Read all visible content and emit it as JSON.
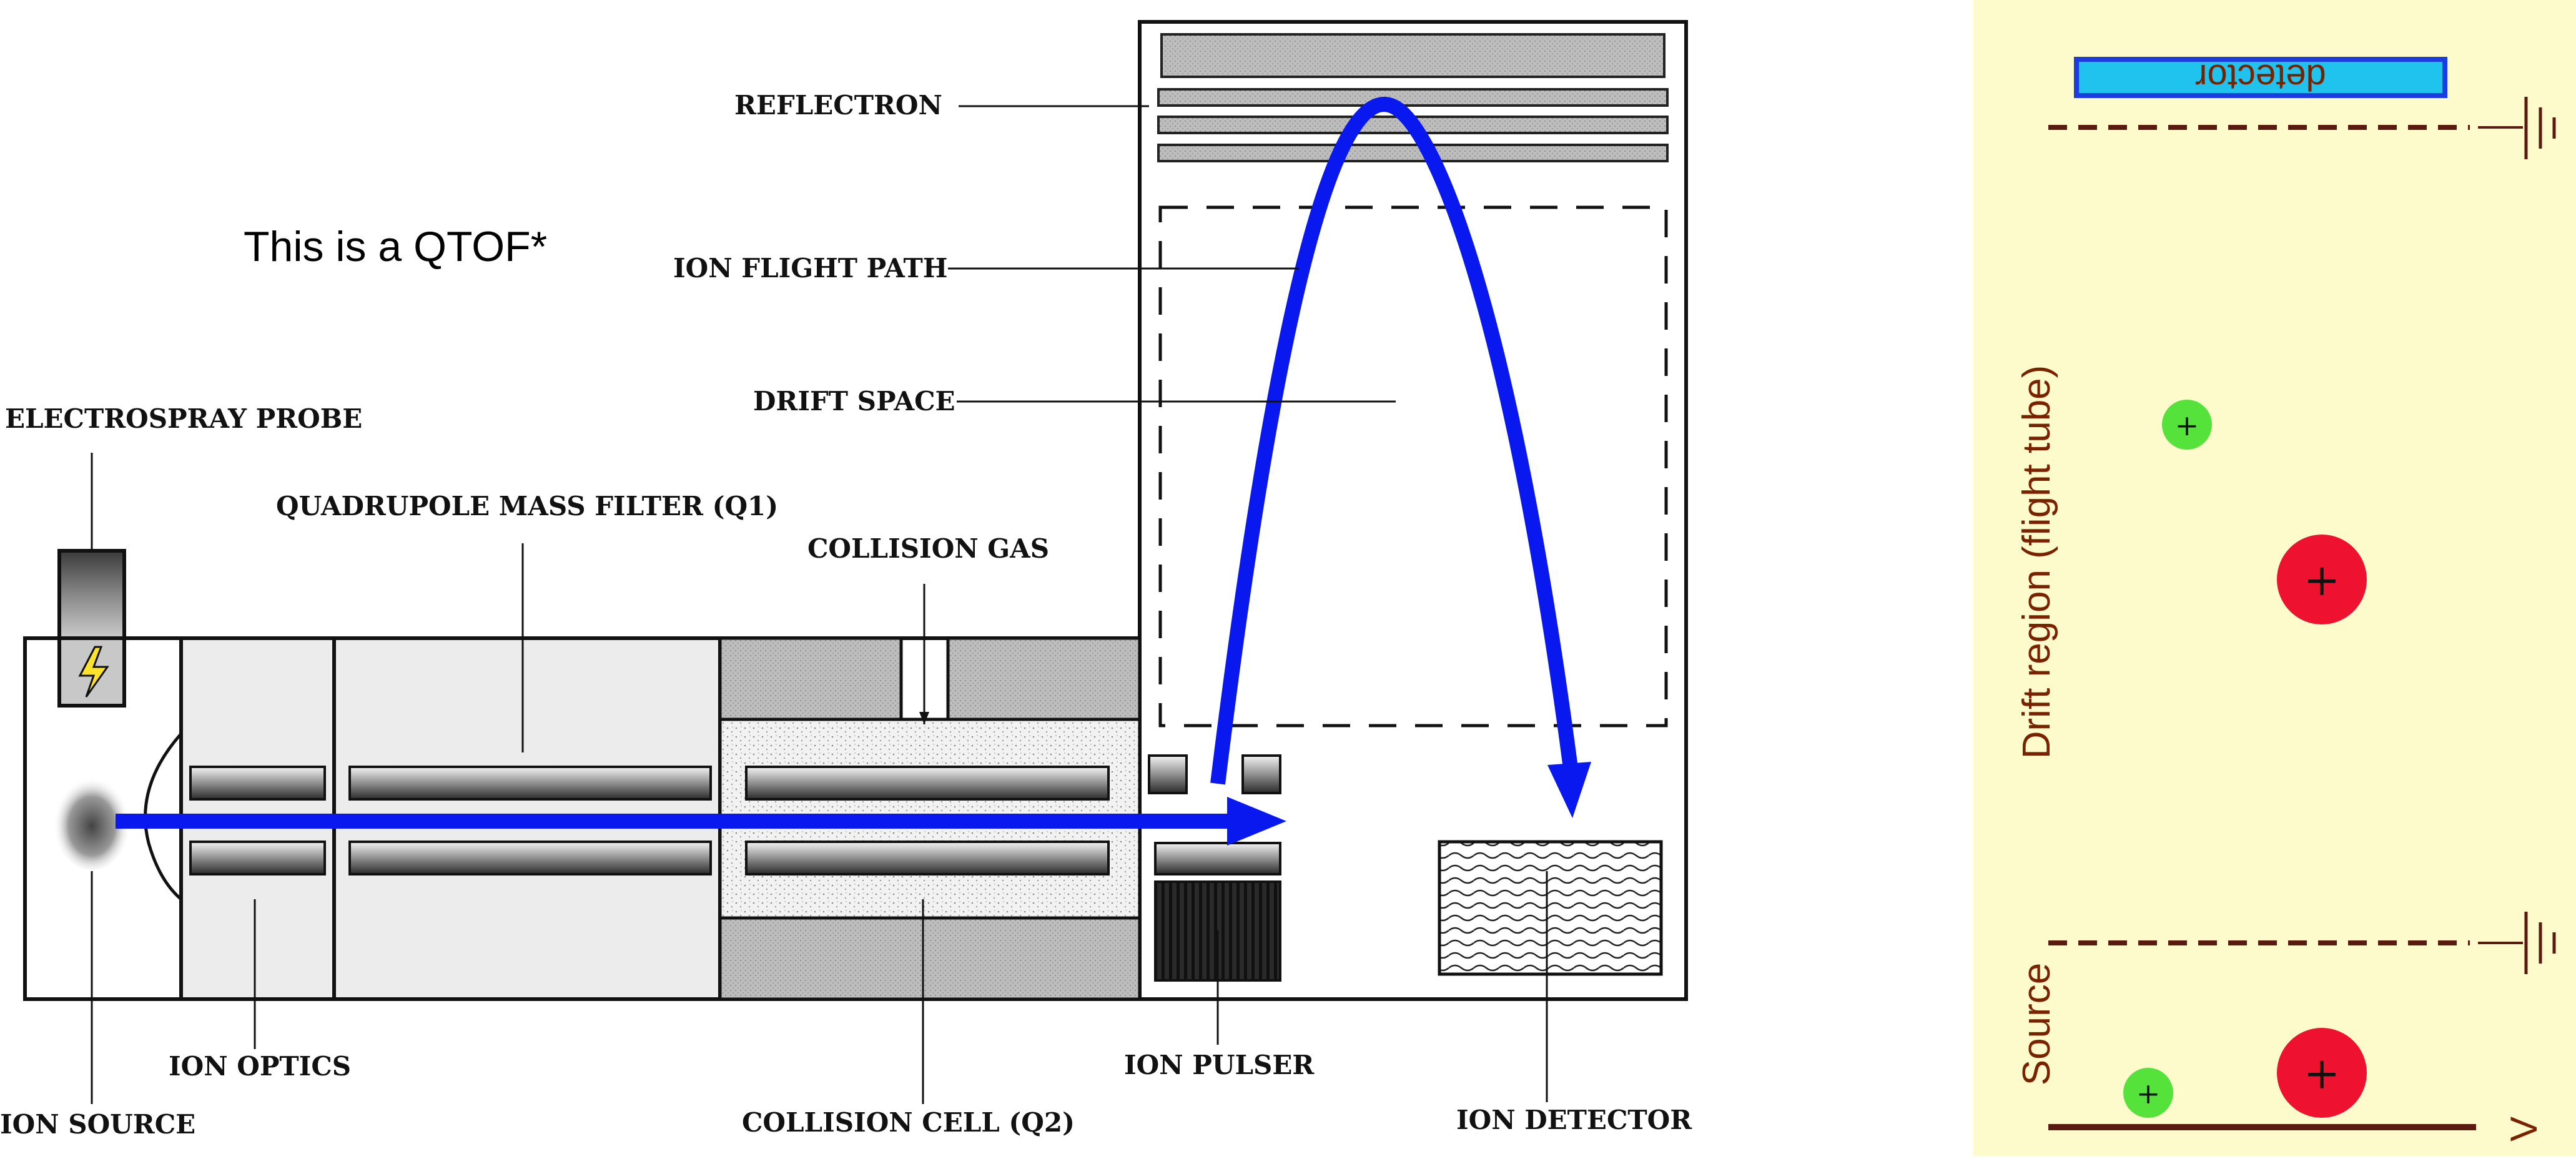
{
  "note": "This is a QTOF*",
  "labels": {
    "reflectron": "REFLECTRON",
    "ion_flight_path": "ION FLIGHT PATH",
    "drift_space": "DRIFT SPACE",
    "electrospray_probe": "ELECTROSPRAY PROBE",
    "quadrupole": "QUADRUPOLE MASS FILTER (Q1)",
    "collision_gas": "COLLISION GAS",
    "ion_optics": "ION OPTICS",
    "ion_source": "ION SOURCE",
    "collision_cell": "COLLISION CELL (Q2)",
    "ion_pulser": "ION PULSER",
    "ion_detector": "ION DETECTOR"
  },
  "panel": {
    "detector": "detector",
    "drift_region": "Drift region (flight tube)",
    "source": "Source",
    "voltage": "V",
    "plus": "+"
  },
  "colors": {
    "flight_arrow": "#0a18f0",
    "panel_bg": "#fdfbcb",
    "detector_fill": "#1fc3ee",
    "detector_border": "#1a3ce0",
    "light_ion": "#55e23a",
    "heavy_ion": "#ee1130",
    "grid_line": "#5a1a10"
  }
}
